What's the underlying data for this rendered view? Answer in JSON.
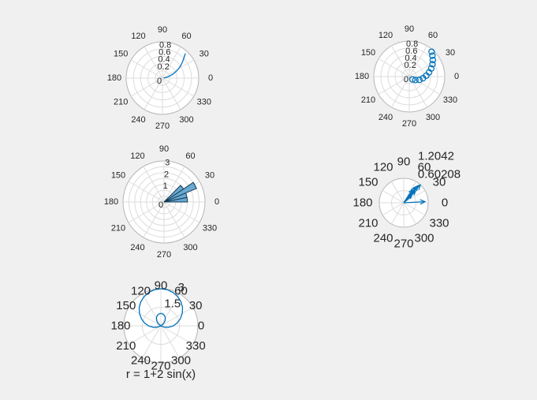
{
  "figure": {
    "background_color": "#f0f0f0",
    "accent_color": "#0072bd",
    "text_color": "#262626",
    "grid_color": "#dcdcdc",
    "boundary_color": "#b5b5b5"
  },
  "chart_data": [
    {
      "id": "polarplot",
      "type": "line",
      "title": "",
      "theta_tick_labels": [
        "0",
        "30",
        "60",
        "90",
        "120",
        "150",
        "180",
        "210",
        "240",
        "270",
        "300",
        "330"
      ],
      "r_max": 1.0,
      "rings": [
        0.2,
        0.4,
        0.6,
        0.8,
        1.0
      ],
      "r_tick_labels": [
        {
          "value": 0,
          "label": "0"
        },
        {
          "value": 0.2,
          "label": "0.2"
        },
        {
          "value": 0.4,
          "label": "0.4"
        },
        {
          "value": 0.6,
          "label": "0.6"
        },
        {
          "value": 0.8,
          "label": "0.8"
        }
      ],
      "series": [
        {
          "name": "rho-vs-theta-line",
          "points_deg_r": [
            [
              6,
              0.04
            ],
            [
              10,
              0.1
            ],
            [
              14,
              0.17
            ],
            [
              18,
              0.25
            ],
            [
              22,
              0.33
            ],
            [
              26,
              0.42
            ],
            [
              30,
              0.51
            ],
            [
              34,
              0.6
            ],
            [
              38,
              0.69
            ],
            [
              42,
              0.78
            ],
            [
              45,
              0.86
            ],
            [
              47,
              0.93
            ]
          ]
        }
      ]
    },
    {
      "id": "polarscatter",
      "type": "scatter",
      "title": "",
      "theta_tick_labels": [
        "0",
        "30",
        "60",
        "90",
        "120",
        "150",
        "180",
        "210",
        "240",
        "270",
        "300",
        "330"
      ],
      "r_max": 1.0,
      "rings": [
        0.2,
        0.4,
        0.6,
        0.8,
        1.0
      ],
      "r_tick_labels": [
        {
          "value": 0,
          "label": "0"
        },
        {
          "value": 0.2,
          "label": "0.2"
        },
        {
          "value": 0.4,
          "label": "0.4"
        },
        {
          "value": 0.6,
          "label": "0.6"
        },
        {
          "value": 0.8,
          "label": "0.8"
        }
      ],
      "marker_diameter_px": 7,
      "series": [
        {
          "name": "rho-vs-theta-markers",
          "points_deg_r": [
            [
              -42,
              0.12
            ],
            [
              -30,
              0.2
            ],
            [
              -18,
              0.3
            ],
            [
              -7,
              0.39
            ],
            [
              3,
              0.48
            ],
            [
              12,
              0.57
            ],
            [
              20,
              0.66
            ],
            [
              28,
              0.74
            ],
            [
              35,
              0.81
            ],
            [
              42,
              0.88
            ],
            [
              48,
              0.94
            ]
          ]
        }
      ]
    },
    {
      "id": "polarhistogram",
      "type": "histogram",
      "title": "",
      "theta_tick_labels": [
        "0",
        "30",
        "60",
        "90",
        "120",
        "150",
        "180",
        "210",
        "240",
        "270",
        "300",
        "330"
      ],
      "r_max": 3.5,
      "rings": [
        0.5,
        1.0,
        1.5,
        2.0,
        2.5,
        3.0,
        3.5
      ],
      "r_tick_labels": [
        {
          "value": 0,
          "label": "0"
        },
        {
          "value": 1,
          "label": "1"
        },
        {
          "value": 2,
          "label": "2"
        },
        {
          "value": 3,
          "label": "3"
        }
      ],
      "bins": {
        "edges_deg": [
          0,
          11.25,
          22.5,
          33.75,
          45
        ],
        "counts": [
          2,
          2,
          3,
          2
        ]
      },
      "bar_fill": "#69a8d1",
      "bar_edge": "#123a52"
    },
    {
      "id": "compass",
      "type": "compass",
      "title": "",
      "theta_tick_labels": [
        "0",
        "30",
        "60",
        "90",
        "120",
        "150",
        "180",
        "210",
        "240",
        "270",
        "300",
        "330"
      ],
      "r_max": 1.2042,
      "rings": [
        0.60208,
        1.2042
      ],
      "r_tick_labels": [
        {
          "value": 0.60208,
          "label": "0.60208"
        },
        {
          "value": 1.2042,
          "label": "1.2042"
        }
      ],
      "arrows_deg_mag": [
        [
          3,
          1.05
        ],
        [
          40,
          0.5
        ],
        [
          44,
          0.8
        ],
        [
          47,
          1.2042
        ],
        [
          50,
          1.1
        ],
        [
          53,
          0.95
        ],
        [
          57,
          0.75
        ]
      ]
    },
    {
      "id": "ezpolar",
      "type": "line",
      "title": "r = 1+2 sin(x)",
      "theta_tick_labels": [
        "0",
        "30",
        "60",
        "90",
        "120",
        "150",
        "180",
        "210",
        "240",
        "270",
        "300",
        "330"
      ],
      "r_max": 3.0,
      "rings": [
        1.5,
        3.0
      ],
      "r_tick_labels": [
        {
          "value": 1.5,
          "label": "1.5"
        },
        {
          "value": 3.0,
          "label": "3"
        }
      ],
      "series": [
        {
          "name": "limacon r = 1 + 2 sin(x)",
          "points_deg_r": [
            [
              0,
              1
            ],
            [
              10,
              1.35
            ],
            [
              20,
              1.68
            ],
            [
              30,
              2
            ],
            [
              40,
              2.29
            ],
            [
              50,
              2.53
            ],
            [
              60,
              2.73
            ],
            [
              70,
              2.88
            ],
            [
              80,
              2.97
            ],
            [
              90,
              3
            ],
            [
              100,
              2.97
            ],
            [
              110,
              2.88
            ],
            [
              120,
              2.73
            ],
            [
              130,
              2.53
            ],
            [
              140,
              2.29
            ],
            [
              150,
              2
            ],
            [
              160,
              1.68
            ],
            [
              170,
              1.35
            ],
            [
              180,
              1
            ],
            [
              190,
              0.65
            ],
            [
              200,
              0.32
            ],
            [
              210,
              0
            ],
            [
              220,
              -0.29
            ],
            [
              230,
              -0.53
            ],
            [
              240,
              -0.73
            ],
            [
              250,
              -0.88
            ],
            [
              260,
              -0.97
            ],
            [
              270,
              -1
            ],
            [
              280,
              -0.97
            ],
            [
              290,
              -0.88
            ],
            [
              300,
              -0.73
            ],
            [
              310,
              -0.53
            ],
            [
              320,
              -0.29
            ],
            [
              330,
              0
            ],
            [
              340,
              0.32
            ],
            [
              350,
              0.65
            ],
            [
              360,
              1
            ]
          ]
        }
      ]
    }
  ]
}
